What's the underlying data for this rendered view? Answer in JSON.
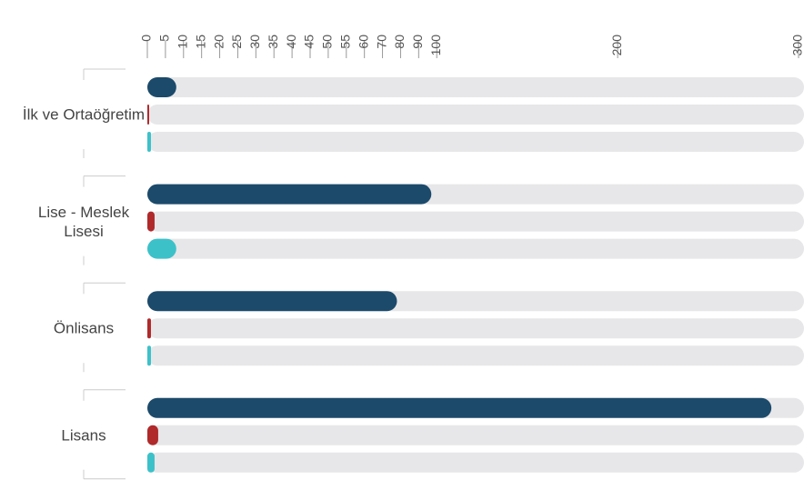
{
  "chart_data": {
    "type": "bar",
    "orientation": "horizontal",
    "categories": [
      "İlk ve Ortaöğretim",
      "Lise - Meslek Lisesi",
      "Önlisans",
      "Lisans"
    ],
    "series": [
      {
        "color": "#1c4a6b",
        "values": [
          8,
          97,
          78,
          285
        ]
      },
      {
        "color": "#b0292b",
        "values": [
          0.5,
          2,
          1,
          3
        ]
      },
      {
        "color": "#3cc1c9",
        "values": [
          1,
          8,
          1,
          2
        ]
      }
    ],
    "xlim": [
      0,
      300
    ],
    "xticks": [
      0,
      5,
      10,
      15,
      20,
      25,
      30,
      35,
      40,
      45,
      50,
      55,
      60,
      70,
      80,
      90,
      100,
      200,
      300
    ],
    "track_color": "#e7e7e9"
  }
}
